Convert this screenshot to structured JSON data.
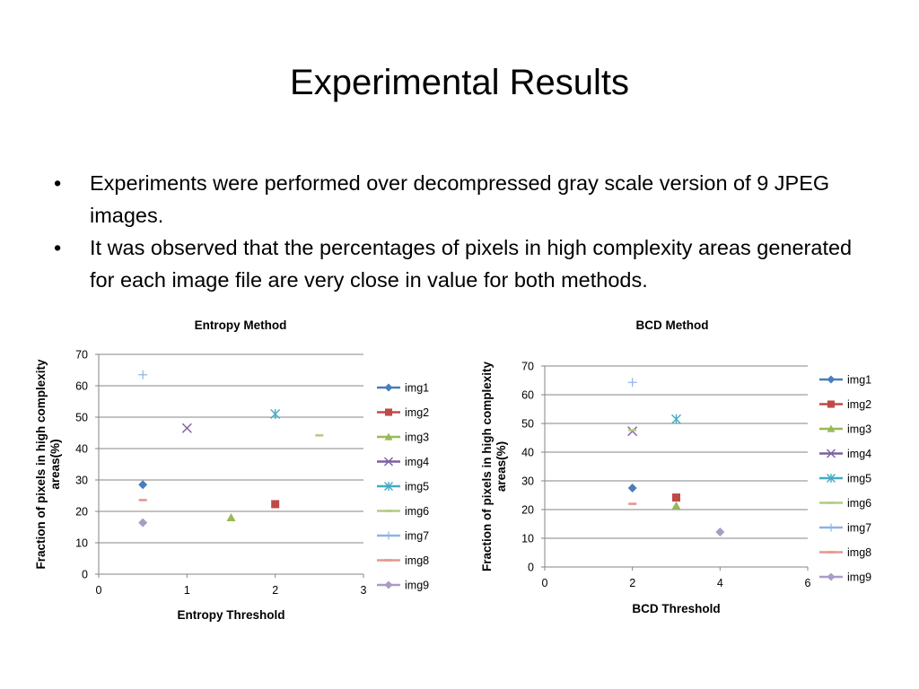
{
  "slide": {
    "title": "Experimental Results",
    "bullets": [
      "Experiments were performed over decompressed gray scale version of 9 JPEG images.",
      "It was observed that the percentages of pixels in high complexity areas generated for each image file are very close in value for both methods."
    ],
    "bullet_glyph": "•"
  },
  "chart_data": [
    {
      "type": "scatter",
      "title": "Entropy Method",
      "xlabel": "Entropy Threshold",
      "ylabel": "Fraction of pixels in high complexity areas(%)",
      "xlim": [
        0,
        3
      ],
      "ylim": [
        0,
        70
      ],
      "xticks": [
        0,
        1,
        2,
        3
      ],
      "yticks": [
        0,
        10,
        20,
        30,
        40,
        50,
        60,
        70
      ],
      "grid": "horizontal",
      "legend": "right",
      "series": [
        {
          "name": "img1",
          "marker": "diamond",
          "color": "#4a7ebb",
          "x": [
            0.5
          ],
          "y": [
            28.5
          ]
        },
        {
          "name": "img2",
          "marker": "square",
          "color": "#be4b48",
          "x": [
            2.0
          ],
          "y": [
            22.3
          ]
        },
        {
          "name": "img3",
          "marker": "triangle",
          "color": "#98b954",
          "x": [
            1.5
          ],
          "y": [
            18.0
          ]
        },
        {
          "name": "img4",
          "marker": "x",
          "color": "#7d60a0",
          "x": [
            1.0
          ],
          "y": [
            46.5
          ]
        },
        {
          "name": "img5",
          "marker": "star",
          "color": "#46aac5",
          "x": [
            2.0
          ],
          "y": [
            51.0
          ]
        },
        {
          "name": "img6",
          "marker": "dash",
          "color": "#b3cc86",
          "x": [
            2.5
          ],
          "y": [
            44.2
          ]
        },
        {
          "name": "img7",
          "marker": "plus",
          "color": "#8eb4e3",
          "x": [
            0.5
          ],
          "y": [
            63.5
          ]
        },
        {
          "name": "img8",
          "marker": "dash",
          "color": "#e6968f",
          "x": [
            0.5
          ],
          "y": [
            23.6
          ]
        },
        {
          "name": "img9",
          "marker": "diamond",
          "color": "#a99bc6",
          "x": [
            0.5
          ],
          "y": [
            16.4
          ]
        }
      ]
    },
    {
      "type": "scatter",
      "title": "BCD Method",
      "xlabel": "BCD Threshold",
      "ylabel": "Fraction of pixels in high complexity areas(%)",
      "xlim": [
        0,
        6
      ],
      "ylim": [
        0,
        70
      ],
      "xticks": [
        0,
        2,
        4,
        6
      ],
      "yticks": [
        0,
        10,
        20,
        30,
        40,
        50,
        60,
        70
      ],
      "grid": "horizontal",
      "legend": "right",
      "series": [
        {
          "name": "img1",
          "marker": "diamond",
          "color": "#4a7ebb",
          "x": [
            2
          ],
          "y": [
            27.5
          ]
        },
        {
          "name": "img2",
          "marker": "square",
          "color": "#be4b48",
          "x": [
            3
          ],
          "y": [
            24.2
          ]
        },
        {
          "name": "img3",
          "marker": "triangle",
          "color": "#98b954",
          "x": [
            3
          ],
          "y": [
            21.3
          ]
        },
        {
          "name": "img4",
          "marker": "x",
          "color": "#7d60a0",
          "x": [
            2
          ],
          "y": [
            47.3
          ]
        },
        {
          "name": "img5",
          "marker": "star",
          "color": "#46aac5",
          "x": [
            3
          ],
          "y": [
            51.5
          ]
        },
        {
          "name": "img6",
          "marker": "dash",
          "color": "#b3cc86",
          "x": [
            2
          ],
          "y": [
            47.7
          ]
        },
        {
          "name": "img7",
          "marker": "plus",
          "color": "#8eb4e3",
          "x": [
            2
          ],
          "y": [
            64.3
          ]
        },
        {
          "name": "img8",
          "marker": "dash",
          "color": "#e6968f",
          "x": [
            2
          ],
          "y": [
            22.0
          ]
        },
        {
          "name": "img9",
          "marker": "diamond",
          "color": "#a99bc6",
          "x": [
            4
          ],
          "y": [
            12.2
          ]
        }
      ]
    }
  ]
}
